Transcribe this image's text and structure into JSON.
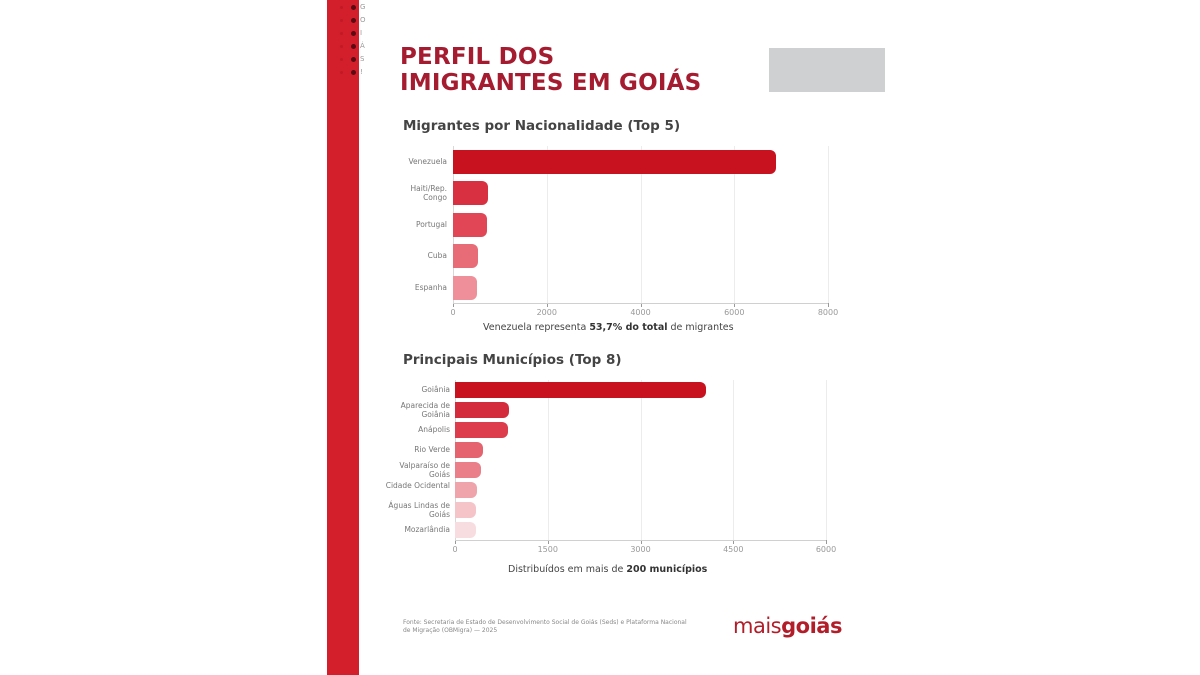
{
  "header": {
    "title_line1": "PERFIL DOS",
    "title_line2": "IMIGRANTES EM GOIÁS"
  },
  "colors": {
    "brand_red": "#d21f2b",
    "title_red": "#a51c30",
    "placeholder_gray": "#cfd0d1"
  },
  "decor": {
    "dot_rows": [
      "G",
      "O",
      "I",
      "Á",
      "S",
      "!"
    ]
  },
  "chart_data": [
    {
      "type": "bar",
      "orientation": "horizontal",
      "title": "Migrantes por Nacionalidade (Top 5)",
      "categories": [
        "Venezuela",
        "Haiti/Rep. Congo",
        "Portugal",
        "Cuba",
        "Espanha"
      ],
      "values": [
        6880,
        750,
        720,
        530,
        510
      ],
      "colors": [
        "#c8121f",
        "#d83040",
        "#e04656",
        "#e86b78",
        "#ee8f99"
      ],
      "xlim": [
        0,
        8000
      ],
      "xticks": [
        "0",
        "2000",
        "4000",
        "6000",
        "8000"
      ],
      "grid": true,
      "annotation": {
        "pre": "Venezuela representa ",
        "bold": "53,7% do total",
        "post": " de migrantes"
      }
    },
    {
      "type": "bar",
      "orientation": "horizontal",
      "title": "Principais Municípios (Top 8)",
      "categories": [
        "Goiânia",
        "Aparecida de Goiânia",
        "Anápolis",
        "Rio Verde",
        "Valparaíso de Goiás",
        "Cidade Ocidental",
        "Águas Lindas de Goiás",
        "Mozarlândia"
      ],
      "values": [
        4060,
        870,
        860,
        450,
        420,
        355,
        340,
        340
      ],
      "colors": [
        "#c8121f",
        "#d42b3c",
        "#dc3c4c",
        "#e4636f",
        "#ea7e89",
        "#efa3ab",
        "#f4c4c9",
        "#f8dde0"
      ],
      "xlim": [
        0,
        6000
      ],
      "xticks": [
        "0",
        "1500",
        "3000",
        "4500",
        "6000"
      ],
      "grid": true,
      "annotation": {
        "pre": "Distribuídos em mais de ",
        "bold": "200 municípios",
        "post": ""
      }
    }
  ],
  "footer": {
    "source": "Fonte: Secretaria de Estado de Desenvolvimento Social de Goiás (Seds) e Plataforma Nacional de Migração (OBMigra) — 2025",
    "logo_light": "mais",
    "logo_bold": "goiás"
  }
}
